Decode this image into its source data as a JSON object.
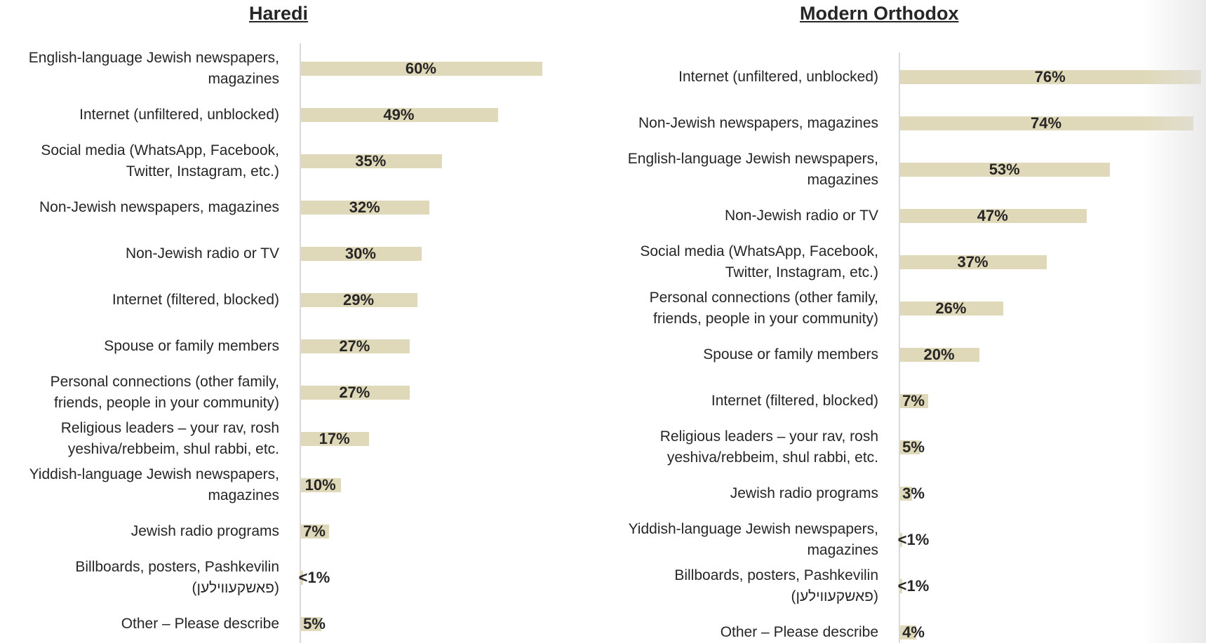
{
  "colors": {
    "bar": "#e0d9b9",
    "axis": "#d9d9d9",
    "text": "#262626"
  },
  "chart_data": [
    {
      "type": "bar",
      "orientation": "horizontal",
      "title": "Haredi",
      "categories": [
        "English-language Jewish newspapers,\nmagazines",
        "Internet (unfiltered, unblocked)",
        "Social media (WhatsApp, Facebook,\nTwitter, Instagram, etc.)",
        "Non-Jewish newspapers, magazines",
        "Non-Jewish radio or TV",
        "Internet (filtered, blocked)",
        "Spouse or family members",
        "Personal connections (other family,\nfriends, people in your community)",
        "Religious leaders – your rav, rosh\nyeshiva/rebbeim, shul rabbi, etc.",
        "Yiddish-language Jewish newspapers,\nmagazines",
        "Jewish radio programs",
        "Billboards, posters, Pashkevilin\n(פאשקעווילען)",
        "Other – Please describe"
      ],
      "values": [
        60,
        49,
        35,
        32,
        30,
        29,
        27,
        27,
        17,
        10,
        7,
        0.5,
        5
      ],
      "data_labels": [
        "60%",
        "49%",
        "35%",
        "32%",
        "30%",
        "29%",
        "27%",
        "27%",
        "17%",
        "10%",
        "7%",
        "<1%",
        "5%"
      ],
      "xlim": [
        0,
        100
      ],
      "grid": false,
      "legend": "none"
    },
    {
      "type": "bar",
      "orientation": "horizontal",
      "title": "Modern Orthodox",
      "categories": [
        "Internet (unfiltered, unblocked)",
        "Non-Jewish newspapers, magazines",
        "English-language Jewish newspapers,\nmagazines",
        "Non-Jewish radio or TV",
        "Social media (WhatsApp, Facebook,\nTwitter, Instagram, etc.)",
        "Personal connections (other family,\nfriends, people in your community)",
        "Spouse or family members",
        "Internet (filtered, blocked)",
        "Religious leaders – your rav, rosh\nyeshiva/rebbeim, shul rabbi, etc.",
        "Jewish radio programs",
        "Yiddish-language Jewish newspapers,\nmagazines",
        "Billboards, posters, Pashkevilin\n(פאשקעווילען)",
        "Other – Please describe"
      ],
      "values": [
        76,
        74,
        53,
        47,
        37,
        26,
        20,
        7,
        5,
        3,
        0.5,
        0.5,
        4
      ],
      "data_labels": [
        "76%",
        "74%",
        "53%",
        "47%",
        "37%",
        "26%",
        "20%",
        "7%",
        "5%",
        "3%",
        "<1%",
        "<1%",
        "4%"
      ],
      "xlim": [
        0,
        100
      ],
      "grid": false,
      "legend": "none"
    }
  ]
}
